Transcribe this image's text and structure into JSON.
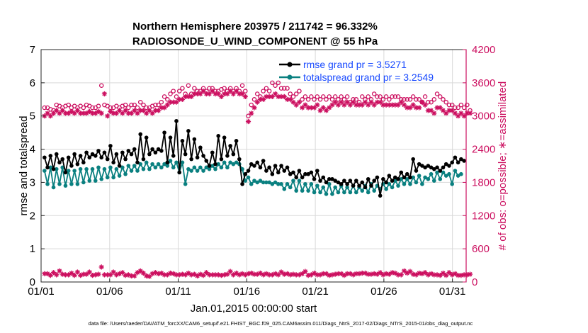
{
  "chart_data": {
    "type": "line",
    "title": "Northern Hemisphere 203975 / 211742 = 96.332%",
    "subtitle": "RADIOSONDE_U_WIND_COMPONENT @ 55 hPa",
    "xlabel": "Jan.01,2015 00:00:00 start",
    "ylabel_left": "rmse and totalspread",
    "ylabel_right": "# of obs: o=possible; ∗=assimilated",
    "footer": "data file: /Users/raeder/DAI/ATM_forcXX/CAM6_setup/f.e21.FHIST_BGC.f09_025.CAM6assim.011/Diags_NtrS_2017-02/Diags_NTrS_2015-01/obs_diag_output.nc",
    "x_ticks": [
      "01/01",
      "01/06",
      "01/11",
      "01/16",
      "01/21",
      "01/26",
      "01/31"
    ],
    "x_tick_days": [
      1,
      6,
      11,
      16,
      21,
      26,
      31
    ],
    "xlim": [
      1,
      32
    ],
    "ylim_left": [
      0,
      7
    ],
    "ylim_right": [
      0,
      4200
    ],
    "y_ticks_left": [
      "0",
      "1",
      "2",
      "3",
      "4",
      "5",
      "6",
      "7"
    ],
    "y_ticks_right": [
      "0",
      "600",
      "1200",
      "1800",
      "2400",
      "3000",
      "3600",
      "4200"
    ],
    "legend": [
      {
        "label": "rmse grand pr = 3.5271",
        "color": "#000000"
      },
      {
        "label": "totalspread grand pr = 3.2549",
        "color": "#008080"
      }
    ],
    "colors": {
      "rmse": "#000000",
      "spread": "#0a8080",
      "obs": "#cc1060",
      "grid": "#d9d9d9",
      "right_axis": "#cc1060"
    },
    "series": [
      {
        "name": "rmse",
        "axis": "left",
        "values": [
          3.75,
          3.45,
          3.8,
          3.4,
          3.85,
          3.6,
          3.7,
          3.3,
          3.75,
          3.5,
          3.85,
          3.55,
          3.8,
          3.6,
          3.9,
          3.75,
          3.85,
          3.8,
          3.95,
          3.75,
          3.9,
          3.7,
          4.1,
          3.6,
          3.85,
          3.5,
          3.9,
          3.7,
          3.95,
          3.85,
          4.0,
          3.6,
          4.45,
          3.7,
          4.35,
          3.85,
          4.0,
          3.9,
          4.0,
          3.95,
          4.5,
          3.6,
          4.35,
          3.8,
          4.85,
          3.3,
          4.25,
          3.85,
          4.55,
          3.7,
          4.3,
          3.75,
          4.05,
          3.8,
          3.65,
          3.5,
          3.9,
          3.55,
          4.4,
          3.7,
          4.35,
          3.8,
          4.1,
          3.85,
          4.25,
          3.7,
          2.95,
          3.25,
          3.35,
          3.55,
          3.5,
          3.6,
          3.45,
          3.65,
          3.35,
          3.45,
          3.25,
          3.5,
          3.3,
          3.5,
          3.35,
          3.45,
          3.25,
          3.3,
          3.15,
          3.35,
          3.15,
          3.25,
          3.25,
          3.3,
          3.1,
          3.35,
          3.05,
          3.15,
          3.0,
          3.1,
          3.1,
          3.05,
          3.0,
          2.95,
          3.05,
          2.95,
          3.05,
          2.9,
          3.05,
          2.9,
          3.0,
          2.85,
          3.1,
          2.9,
          3.05,
          3.15,
          2.6,
          3.1,
          3.0,
          3.2,
          3.05,
          3.15,
          3.1,
          3.3,
          3.15,
          3.25,
          3.15,
          3.7,
          3.35,
          3.55,
          3.5,
          3.45,
          3.5,
          3.45,
          3.4,
          3.45,
          3.35,
          3.45,
          3.55,
          3.5,
          3.6,
          3.75,
          3.6,
          3.7,
          3.65
        ]
      },
      {
        "name": "totalspread",
        "axis": "left",
        "values": [
          3.35,
          2.95,
          3.45,
          2.85,
          3.4,
          2.95,
          3.45,
          2.9,
          3.35,
          2.95,
          3.35,
          2.95,
          3.4,
          3.0,
          3.4,
          3.05,
          3.4,
          3.05,
          3.45,
          3.1,
          3.4,
          3.15,
          3.45,
          3.15,
          3.4,
          3.2,
          3.45,
          3.25,
          3.5,
          3.35,
          3.5,
          3.35,
          3.55,
          3.4,
          3.6,
          3.4,
          3.55,
          3.45,
          3.55,
          3.45,
          3.55,
          3.5,
          3.65,
          3.45,
          3.6,
          3.3,
          3.6,
          2.95,
          3.4,
          3.35,
          3.45,
          3.35,
          3.45,
          3.35,
          3.45,
          3.4,
          3.5,
          3.4,
          3.55,
          3.45,
          3.6,
          3.45,
          3.6,
          3.55,
          3.6,
          3.55,
          3.4,
          3.05,
          3.15,
          2.95,
          3.05,
          3.0,
          3.05,
          3.0,
          3.0,
          3.0,
          2.95,
          3.0,
          2.95,
          2.95,
          2.8,
          2.95,
          2.85,
          3.05,
          2.75,
          3.05,
          2.75,
          2.95,
          2.75,
          2.95,
          2.7,
          2.9,
          2.7,
          2.85,
          2.65,
          2.95,
          2.65,
          2.85,
          2.7,
          2.9,
          2.7,
          2.85,
          2.7,
          2.9,
          2.7,
          2.85,
          2.75,
          2.9,
          2.7,
          2.95,
          2.75,
          2.9,
          2.8,
          2.95,
          2.8,
          2.95,
          2.85,
          3.05,
          2.9,
          3.1,
          2.95,
          3.1,
          2.95,
          3.15,
          3.0,
          3.2,
          2.95,
          3.15,
          3.1,
          3.25,
          3.05,
          3.3,
          3.1,
          3.3,
          3.2,
          3.25,
          2.95,
          3.35,
          3.2,
          3.25
        ]
      },
      {
        "name": "obs possible",
        "axis": "right",
        "marker": "circle",
        "values": [
          3150,
          3150,
          3120,
          3100,
          3200,
          3180,
          3150,
          3180,
          3200,
          3150,
          3180,
          3150,
          3180,
          3150,
          3200,
          3180,
          3150,
          3150,
          3180,
          3550,
          3200,
          3180,
          3150,
          3150,
          3180,
          3150,
          3180,
          3200,
          3150,
          3200,
          3200,
          3150,
          3250,
          3200,
          3150,
          3150,
          3180,
          3200,
          3200,
          3250,
          3350,
          3300,
          3400,
          3450,
          3350,
          3450,
          3500,
          3400,
          3550,
          3400,
          3500,
          3450,
          3450,
          3500,
          3450,
          3500,
          3500,
          3450,
          3450,
          3480,
          3500,
          3450,
          3500,
          3450,
          3500,
          3450,
          3550,
          3450,
          3000,
          3200,
          3300,
          3400,
          3350,
          3450,
          3500,
          3450,
          3600,
          3550,
          3600,
          3500,
          3500,
          3500,
          3400,
          3350,
          3400,
          3450,
          3300,
          3350,
          3300,
          3350,
          3300,
          3350,
          3300,
          3350,
          3300,
          3350,
          3300,
          3350,
          3300,
          3350,
          3300,
          3350,
          3250,
          3300,
          3300,
          3250,
          3350,
          3300,
          3350,
          3300,
          3400,
          3350,
          3350,
          3300,
          3350,
          3300,
          3350,
          3350,
          3350,
          3300,
          3300,
          3300,
          3300,
          3350,
          3300,
          3300,
          3250,
          3350,
          3250,
          3250,
          3300,
          3400,
          3350,
          3300,
          3250,
          3200,
          3200,
          3150,
          3150,
          3200,
          3150,
          3200,
          3100
        ]
      },
      {
        "name": "obs assimilated",
        "axis": "right",
        "marker": "star",
        "values": [
          3000,
          3050,
          3000,
          3050,
          3100,
          3050,
          3100,
          3050,
          3050,
          3080,
          3050,
          3100,
          3050,
          3050,
          3050,
          3080,
          3050,
          3050,
          3080,
          3050,
          3400,
          3000,
          3080,
          3050,
          3050,
          3100,
          3050,
          3100,
          3050,
          3050,
          3100,
          3050,
          3100,
          3100,
          3050,
          3100,
          3050,
          3100,
          3100,
          3150,
          3150,
          3200,
          3250,
          3250,
          3250,
          3300,
          3300,
          3350,
          3350,
          3350,
          3400,
          3400,
          3400,
          3450,
          3400,
          3400,
          3450,
          3400,
          3400,
          3350,
          3400,
          3400,
          3450,
          3400,
          3450,
          3400,
          3400,
          3350,
          2900,
          3050,
          3150,
          3250,
          3300,
          3300,
          3350,
          3350,
          3350,
          3400,
          3350,
          3350,
          3350,
          3300,
          3300,
          3250,
          3200,
          3250,
          3150,
          3200,
          3150,
          3150,
          3150,
          3200,
          3100,
          3150,
          3100,
          3150,
          3200,
          3250,
          3200,
          3250,
          3200,
          3250,
          3200,
          3250,
          3200,
          3200,
          3200,
          3250,
          3200,
          3250,
          3200,
          3250,
          3250,
          3200,
          3200,
          3200,
          3200,
          3200,
          3200,
          3250,
          3200,
          3150,
          3150,
          3200,
          3150,
          3150,
          3250,
          3200,
          3100,
          3100,
          3050,
          3150,
          3150,
          3100,
          3050,
          3100,
          3100,
          3050,
          3000,
          3050,
          3000,
          3050,
          3050
        ]
      },
      {
        "name": "obs rejected",
        "axis": "right",
        "marker": "star",
        "values": [
          150,
          150,
          120,
          170,
          130,
          200,
          140,
          130,
          130,
          160,
          120,
          180,
          120,
          140,
          140,
          180,
          120,
          130,
          140,
          270,
          130,
          130,
          130,
          180,
          130,
          150,
          170,
          120,
          130,
          110,
          110,
          170,
          200,
          160,
          110,
          100,
          150,
          170,
          150,
          160,
          130,
          130,
          160,
          150,
          130,
          130,
          140,
          130,
          160,
          130,
          140,
          110,
          140,
          120,
          170,
          130,
          130,
          130,
          130,
          120,
          130,
          140,
          190,
          130,
          160,
          130,
          150,
          130,
          150,
          160,
          140,
          140,
          160,
          130,
          150,
          130,
          130,
          150,
          130,
          180,
          140,
          150,
          130,
          140,
          130,
          130,
          150,
          190,
          120,
          130,
          160,
          130,
          130,
          150,
          150,
          120,
          130,
          140,
          150,
          150,
          120,
          150,
          150,
          130,
          150,
          150,
          160,
          160,
          140,
          140,
          150,
          140,
          170,
          130,
          150,
          140,
          170,
          160,
          130,
          130,
          200,
          160,
          190,
          140,
          130,
          160,
          150,
          170,
          130,
          150,
          130,
          130,
          120,
          160,
          120,
          170,
          130,
          150,
          120,
          120,
          130,
          130,
          140
        ]
      }
    ]
  }
}
